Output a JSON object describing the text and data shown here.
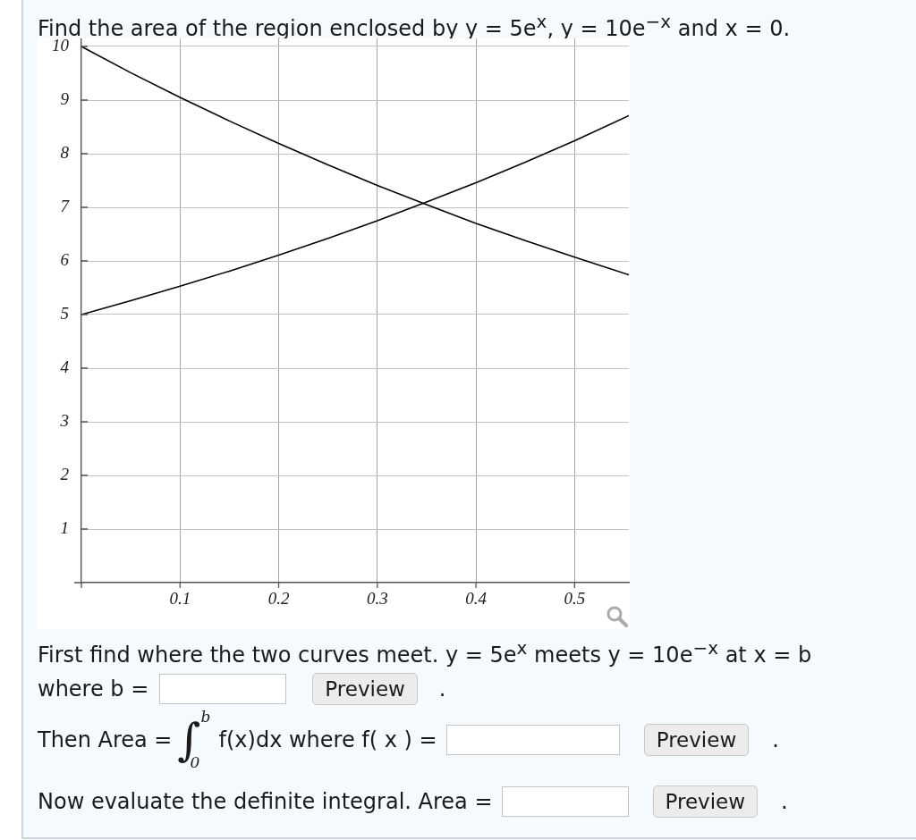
{
  "chart_data": {
    "type": "line",
    "title": "Find the area of the region enclosed by y = 5e$^{x}$, y = 10e$^{−x}$ and x = 0.",
    "x": [
      0,
      0.05,
      0.1,
      0.15,
      0.2,
      0.25,
      0.3,
      0.35,
      0.4,
      0.45,
      0.5,
      0.555
    ],
    "series": [
      {
        "color": "#000000",
        "values": [
          5,
          5.26,
          5.53,
          5.81,
          6.11,
          6.42,
          6.75,
          7.1,
          7.46,
          7.84,
          8.24,
          8.71
        ]
      },
      {
        "color": "#000000",
        "values": [
          10,
          9.51,
          9.05,
          8.61,
          8.19,
          7.79,
          7.41,
          7.05,
          6.7,
          6.38,
          6.07,
          5.74
        ]
      }
    ],
    "xlim": [
      0,
      0.555
    ],
    "ylim": [
      0,
      10.15
    ],
    "xticks": [
      0.1,
      0.2,
      0.3,
      0.4,
      0.5
    ],
    "yticks": [
      1,
      2,
      3,
      4,
      5,
      6,
      7,
      8,
      9,
      10
    ],
    "grid": true,
    "marker": "none",
    "line_style": "solid",
    "annotations": [
      "First find where the two curves meet. y = 5e$^{x}$ meets y = 10e$^{−x}$ at x = b",
      "where b =",
      "Preview",
      ".",
      "Then Area =",
      "∫$_{0}$$^{b}$",
      "f(x)dx where f( x ) =",
      "Preview",
      ".",
      "Now evaluate the definite integral. Area =",
      "Preview",
      "."
    ]
  }
}
